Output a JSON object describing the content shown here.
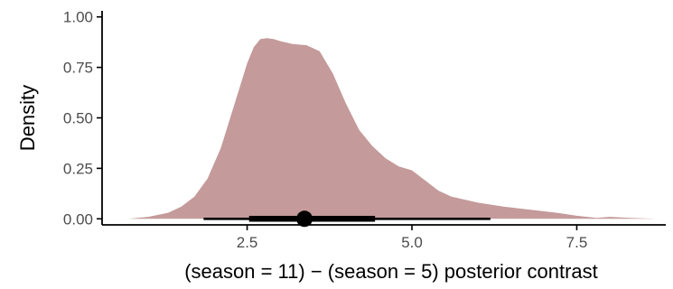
{
  "chart_data": {
    "type": "area",
    "title": "",
    "xlabel": "(season = 11) − (season = 5) posterior contrast",
    "ylabel": "Density",
    "xlim": [
      0.3,
      8.85
    ],
    "ylim": [
      -0.03,
      1.03
    ],
    "x_ticks": [
      2.5,
      5.0,
      7.5
    ],
    "x_tick_labels": [
      "2.5",
      "5.0",
      "7.5"
    ],
    "y_ticks": [
      0.0,
      0.25,
      0.5,
      0.75,
      1.0
    ],
    "y_tick_labels": [
      "0.00",
      "0.25",
      "0.50",
      "0.75",
      "1.00"
    ],
    "grid": false,
    "legend": "none",
    "fill_color": "#c49a9a",
    "series": [
      {
        "x": [
          0.7,
          1.0,
          1.3,
          1.5,
          1.7,
          1.9,
          2.1,
          2.3,
          2.5,
          2.6,
          2.7,
          2.8,
          2.9,
          3.0,
          3.2,
          3.4,
          3.6,
          3.8,
          4.0,
          4.2,
          4.4,
          4.6,
          4.8,
          5.0,
          5.2,
          5.4,
          5.6,
          6.0,
          6.4,
          6.8,
          7.2,
          7.5,
          7.8,
          8.0,
          8.3,
          8.7
        ],
        "y": [
          0.0,
          0.01,
          0.03,
          0.06,
          0.11,
          0.2,
          0.35,
          0.56,
          0.77,
          0.85,
          0.89,
          0.895,
          0.89,
          0.88,
          0.865,
          0.86,
          0.83,
          0.72,
          0.57,
          0.44,
          0.36,
          0.3,
          0.26,
          0.24,
          0.19,
          0.14,
          0.11,
          0.08,
          0.06,
          0.045,
          0.03,
          0.015,
          0.005,
          0.01,
          0.005,
          0.0
        ]
      }
    ],
    "point_interval": {
      "point": 3.37,
      "interval_66": [
        2.53,
        4.44
      ],
      "interval_95": [
        1.84,
        6.19
      ]
    }
  }
}
